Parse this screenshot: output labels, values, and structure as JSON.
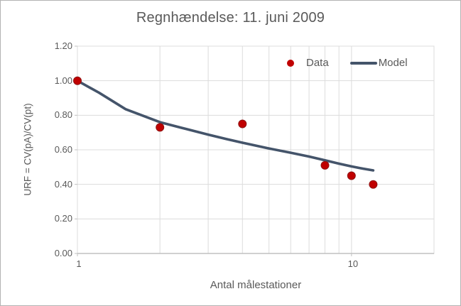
{
  "colors": {
    "data_red": "#c00000",
    "data_red_edge": "#8f1212",
    "model_blue": "#44546a",
    "grid": "#dcdcdc",
    "axis": "#c0c0c0",
    "text_gray": "#595959"
  },
  "chart_data": {
    "type": "scatter",
    "title": "Regnhændelse: 11. juni 2009",
    "xlabel": "Antal målestationer",
    "ylabel": "URF = CV(pA)/CV(pt)",
    "x_scale": "log",
    "xlim": [
      1,
      20
    ],
    "ylim": [
      0,
      1.2
    ],
    "grid": true,
    "x_gridlines": [
      2,
      3,
      4,
      5,
      6,
      7,
      8,
      9,
      10,
      20
    ],
    "x_ticks": [
      {
        "v": 1,
        "label": "1"
      },
      {
        "v": 10,
        "label": "10"
      }
    ],
    "y_ticks": [
      {
        "v": 0.0,
        "label": "0.00"
      },
      {
        "v": 0.2,
        "label": "0.20"
      },
      {
        "v": 0.4,
        "label": "0.40"
      },
      {
        "v": 0.6,
        "label": "0.60"
      },
      {
        "v": 0.8,
        "label": "0.80"
      },
      {
        "v": 1.0,
        "label": "1.00"
      },
      {
        "v": 1.2,
        "label": "1.20"
      }
    ],
    "legend": {
      "position": "inside-top-right"
    },
    "series": [
      {
        "name": "Data",
        "type": "scatter",
        "color": "#c00000",
        "points": [
          [
            1,
            1.0
          ],
          [
            2,
            0.73
          ],
          [
            4,
            0.75
          ],
          [
            8,
            0.51
          ],
          [
            10,
            0.45
          ],
          [
            12,
            0.4
          ]
        ]
      },
      {
        "name": "Model",
        "type": "line",
        "color": "#44546a",
        "points": [
          [
            1,
            1.0
          ],
          [
            1.2,
            0.93
          ],
          [
            1.5,
            0.835
          ],
          [
            2,
            0.76
          ],
          [
            2.5,
            0.72
          ],
          [
            3,
            0.688
          ],
          [
            3.5,
            0.662
          ],
          [
            4,
            0.641
          ],
          [
            5,
            0.608
          ],
          [
            6,
            0.583
          ],
          [
            7,
            0.561
          ],
          [
            8,
            0.539
          ],
          [
            9,
            0.52
          ],
          [
            10,
            0.504
          ],
          [
            11,
            0.491
          ],
          [
            12,
            0.481
          ]
        ]
      }
    ]
  }
}
